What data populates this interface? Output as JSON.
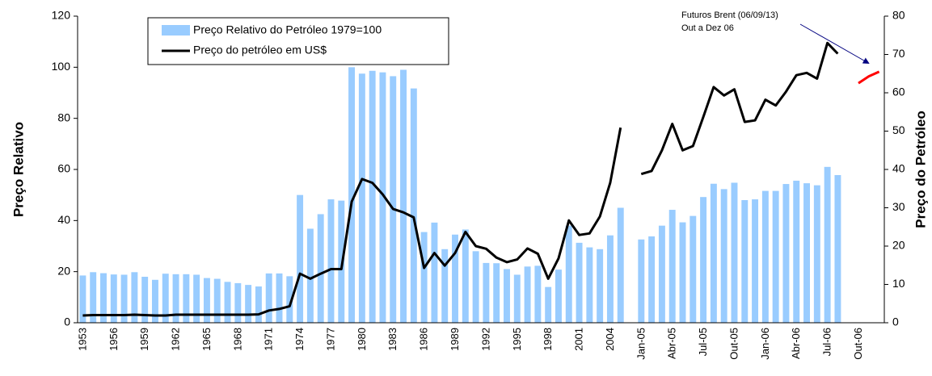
{
  "chart_data": {
    "type": "bar",
    "ylabel": "Preço Relativo",
    "y2label": "Preço do Petróleo",
    "annotation": [
      "Futuros Brent (06/09/13)",
      "Out a Dez 06"
    ],
    "legend": "top-left",
    "categories": [
      "1953",
      null,
      null,
      "1956",
      null,
      null,
      "1959",
      null,
      null,
      "1962",
      null,
      null,
      "1965",
      null,
      null,
      "1968",
      null,
      null,
      "1971",
      null,
      null,
      "1974",
      null,
      null,
      "1977",
      null,
      null,
      "1980",
      null,
      null,
      "1983",
      null,
      null,
      "1986",
      null,
      null,
      "1989",
      null,
      null,
      "1992",
      null,
      null,
      "1995",
      null,
      null,
      "1998",
      null,
      null,
      "2001",
      null,
      null,
      "2004",
      null,
      null,
      "Jan-05",
      null,
      null,
      "Abr-05",
      null,
      null,
      "Jul-05",
      null,
      null,
      "Out-05",
      null,
      null,
      "Jan-06",
      null,
      null,
      "Abr-06",
      null,
      null,
      "Jul-06",
      null,
      null,
      "Out-06",
      null,
      null
    ],
    "series": [
      {
        "name": "Preço Relativo do Petróleo 1979=100",
        "type": "bar",
        "color": "#99ccff",
        "values": [
          18.5,
          19.8,
          19.4,
          18.9,
          18.8,
          19.8,
          18,
          16.8,
          19.2,
          19,
          19,
          18.8,
          17.5,
          17.2,
          16,
          15.5,
          14.8,
          14.2,
          19.3,
          19.3,
          18.2,
          50,
          36.8,
          42.5,
          48.3,
          47.8,
          100,
          97.5,
          98.6,
          98,
          96.5,
          99,
          91.7,
          35.5,
          39.2,
          28.8,
          34.5,
          36.5,
          28,
          23.4,
          23.3,
          21,
          18.8,
          22,
          22.3,
          14,
          20.8,
          38,
          31.3,
          29.5,
          28.8,
          34.2,
          45,
          null,
          32.6,
          33.8,
          38,
          44.2,
          39.3,
          41.8,
          49.2,
          54.4,
          52.3,
          54.8,
          48,
          48.3,
          51.6,
          51.6,
          54.3,
          55.6,
          54.6,
          53.8,
          61,
          57.8,
          null,
          null,
          null,
          null
        ]
      },
      {
        "name": "Preço do petróleo em US$",
        "type": "line",
        "axis": "y2",
        "color": "#000000",
        "values": [
          1.9,
          2.0,
          2.0,
          2.0,
          2.0,
          2.1,
          2.0,
          1.9,
          1.9,
          2.1,
          2.1,
          2.1,
          2.1,
          2.1,
          2.1,
          2.1,
          2.1,
          2.2,
          3.2,
          3.6,
          4.3,
          12.8,
          11.5,
          12.8,
          14,
          14,
          31.6,
          37.5,
          36.5,
          33.5,
          29.7,
          28.8,
          27.5,
          14.3,
          18.2,
          14.9,
          18.2,
          23.7,
          20,
          19.3,
          17,
          15.8,
          16.5,
          19.4,
          18,
          11.5,
          16.8,
          26.7,
          22.9,
          23.3,
          27.7,
          36.5,
          50.9,
          null,
          38.8,
          39.6,
          45,
          51.9,
          45,
          46.1,
          53.7,
          61.5,
          59.3,
          60.9,
          52.4,
          52.8,
          58.2,
          56.7,
          60.3,
          64.6,
          65.2,
          63.7,
          73,
          70.2,
          null,
          null,
          null,
          null
        ]
      },
      {
        "type": "line",
        "axis": "y2",
        "color": "#ff0000",
        "values": [
          null,
          null,
          null,
          null,
          null,
          null,
          null,
          null,
          null,
          null,
          null,
          null,
          null,
          null,
          null,
          null,
          null,
          null,
          null,
          null,
          null,
          null,
          null,
          null,
          null,
          null,
          null,
          null,
          null,
          null,
          null,
          null,
          null,
          null,
          null,
          null,
          null,
          null,
          null,
          null,
          null,
          null,
          null,
          null,
          null,
          null,
          null,
          null,
          null,
          null,
          null,
          null,
          null,
          null,
          null,
          null,
          null,
          null,
          null,
          null,
          null,
          null,
          null,
          null,
          null,
          null,
          null,
          null,
          null,
          null,
          null,
          null,
          null,
          null,
          null,
          62.5,
          64.3,
          65.5
        ]
      }
    ],
    "ylim": [
      0,
      120
    ],
    "yticks": [
      0,
      20,
      40,
      60,
      80,
      100,
      120
    ],
    "y2lim": [
      0,
      80
    ],
    "y2ticks": [
      0,
      10,
      20,
      30,
      40,
      50,
      60,
      70,
      80
    ],
    "grid": false
  }
}
